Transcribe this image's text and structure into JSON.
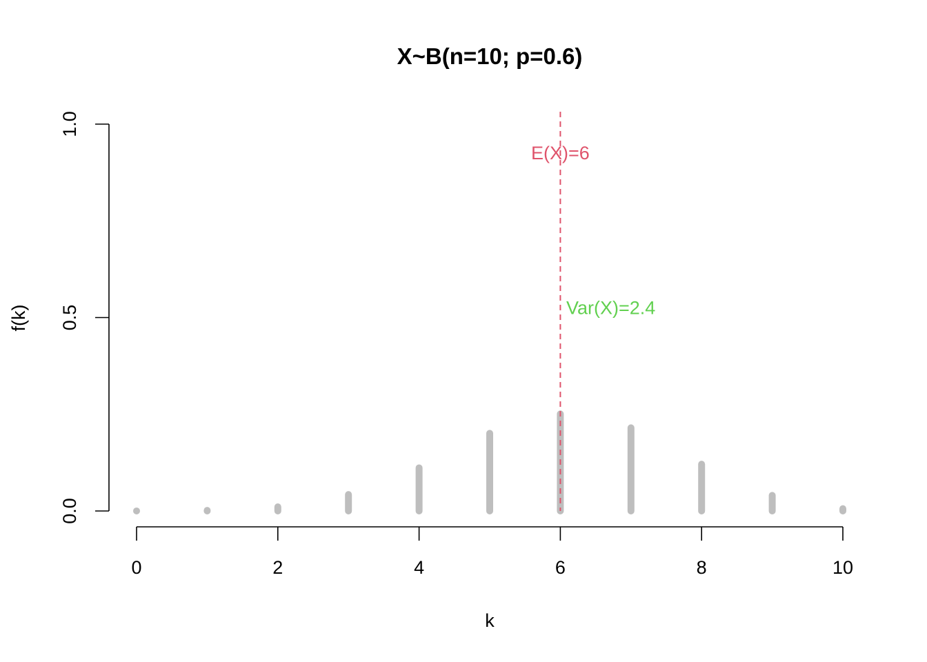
{
  "chart_data": {
    "type": "bar",
    "title": "X~B(n=10; p=0.6)",
    "xlabel": "k",
    "ylabel": "f(k)",
    "x": [
      0,
      1,
      2,
      3,
      4,
      5,
      6,
      7,
      8,
      9,
      10
    ],
    "values": [
      0.0001,
      0.0016,
      0.0106,
      0.0425,
      0.1115,
      0.2007,
      0.2508,
      0.215,
      0.1209,
      0.0403,
      0.006
    ],
    "xlim": [
      0,
      10
    ],
    "ylim": [
      0,
      1
    ],
    "x_ticks": [
      "0",
      "2",
      "4",
      "6",
      "8",
      "10"
    ],
    "y_ticks": [
      "0.0",
      "0.5",
      "1.0"
    ],
    "bar_color": "#bebebe",
    "grid": false,
    "annotations": [
      {
        "text": "E(X)=6",
        "color": "#df536b",
        "x": 6,
        "y": 0.9
      },
      {
        "text": "Var(X)=2.4",
        "color": "#61d04f",
        "x": 6.5,
        "y": 0.5
      }
    ],
    "mean_line": {
      "x": 6,
      "color": "#df536b",
      "style": "dashed"
    }
  }
}
